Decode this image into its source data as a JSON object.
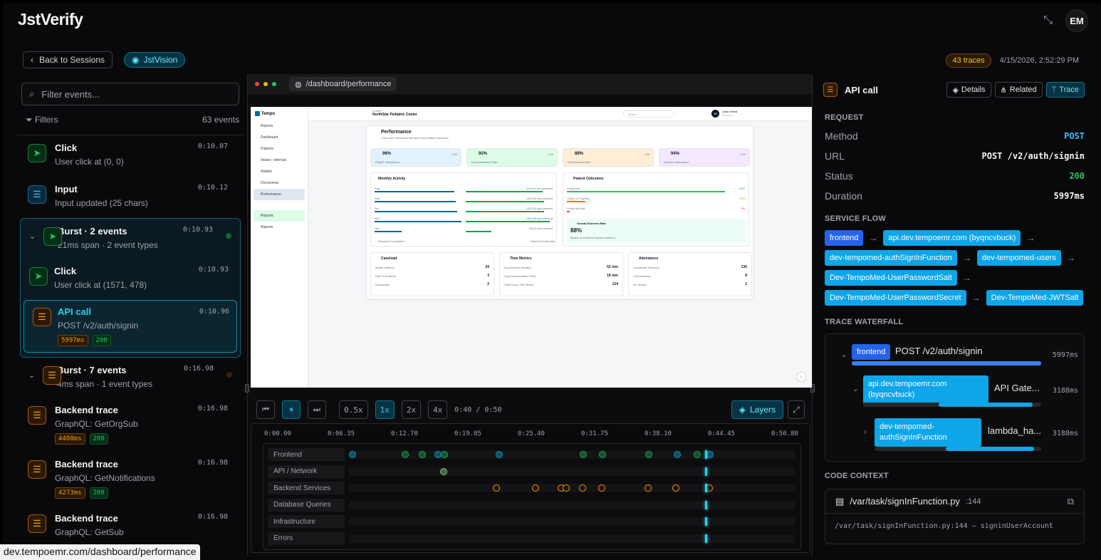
{
  "app": {
    "logo": "JstVerify",
    "avatar": "EM"
  },
  "subbar": {
    "back": "Back to Sessions",
    "vision": "JstVision",
    "traces": "43 traces",
    "datetime": "4/15/2026, 2:52:29 PM"
  },
  "left": {
    "search_placeholder": "Filter events...",
    "filters": "Filters",
    "count": "63 events",
    "events": [
      {
        "title": "Click",
        "sub": "User click at (0, 0)",
        "time": "0:10.07"
      },
      {
        "title": "Input",
        "sub": "Input updated (25 chars)",
        "time": "0:10.12"
      }
    ],
    "burst1": {
      "title": "Burst · 2 events",
      "sub": "21ms span · 2 event types",
      "time": "0:10.93",
      "click": {
        "title": "Click",
        "sub": "User click at (1571, 478)",
        "time": "0:10.93"
      },
      "api": {
        "title": "API call",
        "sub": "POST /v2/auth/signin",
        "time": "0:10.96",
        "dur": "5997ms",
        "status": "200"
      }
    },
    "burst2": {
      "title": "Burst · 7 events",
      "sub": "4ms span · 1 event types",
      "time": "0:16.98"
    },
    "traces": [
      {
        "title": "Backend trace",
        "sub": "GraphQL: GetOrgSub",
        "time": "0:16.98",
        "dur": "4408ms",
        "status": "200"
      },
      {
        "title": "Backend trace",
        "sub": "GraphQL: GetNotifications",
        "time": "0:16.98",
        "dur": "4273ms",
        "status": "200"
      },
      {
        "title": "Backend trace",
        "sub": "GraphQL: GetSub",
        "time": "0:16.98"
      }
    ]
  },
  "browser": {
    "url": "/dashboard/performance"
  },
  "preview": {
    "brand": "Tempo",
    "clinic_label": "CLINIC",
    "clinic": "NorthStar Pediatric Center",
    "search": "Search",
    "user": "Justin Reed",
    "user_role": "Account",
    "user_initials": "JR",
    "nav": [
      "Reports",
      "Dashboard",
      "Patients",
      "Intake / referrals",
      "Waitlist",
      "Documents",
      "Performance",
      "",
      "Reports",
      "Reports"
    ],
    "title": "Performance",
    "subtitle": "Track your clinical performance and patient outcomes",
    "stats": [
      {
        "v": "96%",
        "l": "Patient Satisfaction",
        "d": "+2%"
      },
      {
        "v": "92%",
        "l": "Documentation Rate",
        "d": "+1%"
      },
      {
        "v": "88%",
        "l": "Goal Achievement",
        "d": "-1%"
      },
      {
        "v": "94%",
        "l": "Session Attendance",
        "d": "+2%"
      }
    ],
    "monthly": {
      "title": "Monthly Activity",
      "rows": [
        {
          "m": "Aug",
          "v": "118/124 documented"
        },
        {
          "m": "Sep",
          "v": "128/132 documented"
        },
        {
          "m": "Oct",
          "v": "122/128 documented"
        },
        {
          "m": "Nov",
          "v": "130/135 documented"
        },
        {
          "m": "Dec",
          "v": "40/42 documented"
        }
      ],
      "legend1": "Sessions Completed",
      "legend2": "Notes Documented"
    },
    "outcomes": {
      "title": "Patient Outcomes",
      "rows": [
        {
          "l": "Goals Met",
          "v": "68%"
        },
        {
          "l": "Goals In Progress",
          "v": "10%"
        },
        {
          "l": "Goals Not Met",
          "v": "3%"
        }
      ],
      "rate_label": "Overall Success Rate",
      "rate": "88%",
      "rate_sub": "Based on treatment goals achieved"
    },
    "caseload": {
      "title": "Caseload",
      "rows": [
        {
          "l": "Active Patients",
          "v": "24"
        },
        {
          "l": "New This Month",
          "v": "3"
        },
        {
          "l": "Discharged",
          "v": "2"
        }
      ]
    },
    "time": {
      "title": "Time Metrics",
      "rows": [
        {
          "l": "Avg Session Duration",
          "v": "52 min"
        },
        {
          "l": "Avg Documentation Time",
          "v": "18 min"
        },
        {
          "l": "Total Hours This Month",
          "v": "124"
        }
      ]
    },
    "attendance": {
      "title": "Attendance",
      "rows": [
        {
          "l": "Completed Sessions",
          "v": "136"
        },
        {
          "l": "Cancellations",
          "v": "8"
        },
        {
          "l": "No Shows",
          "v": "2"
        }
      ]
    }
  },
  "player": {
    "speeds": [
      "0.5x",
      "1x",
      "2x",
      "4x"
    ],
    "time": "0:40 / 0:50",
    "layers": "Layers"
  },
  "timeline": {
    "ticks": [
      "0:00.00",
      "0:06.35",
      "0:12.70",
      "0:19.05",
      "0:25.40",
      "0:31.75",
      "0:38.10",
      "0:44.45",
      "0:50.80"
    ],
    "lanes": [
      "Frontend",
      "API / Network",
      "Backend Services",
      "Database Queries",
      "Infrastructure",
      "Errors"
    ]
  },
  "right": {
    "title": "API call",
    "tabs": [
      "Details",
      "Related",
      "Trace"
    ],
    "request_label": "REQUEST",
    "method_k": "Method",
    "method": "POST",
    "url_k": "URL",
    "url": "POST /v2/auth/signin",
    "status_k": "Status",
    "status": "200",
    "duration_k": "Duration",
    "duration": "5997ms",
    "flow_label": "SERVICE FLOW",
    "flow": [
      "frontend",
      "api.dev.tempoemr.com (byqncvbuck)",
      "dev-tempomed-authSignInFunction",
      "dev-tempomed-users",
      "Dev-TempoMed-UserPasswordSalt",
      "Dev-TempoMed-UserPasswordSecret",
      "Dev-TempoMed-JWTSalt"
    ],
    "waterfall_label": "TRACE WATERFALL",
    "waterfall": [
      {
        "svc": "frontend",
        "op": "POST /v2/auth/signin",
        "ms": "5997ms"
      },
      {
        "svc": "api.dev.tempoemr.com (byqncvbuck)",
        "op": "API Gate...",
        "ms": "3188ms"
      },
      {
        "svc": "dev-tempomed-authSignInFunction",
        "op": "lambda_ha...",
        "ms": "3188ms"
      }
    ],
    "code_label": "CODE CONTEXT",
    "file": "/var/task/signInFunction.py",
    "line": ":144",
    "code": "/var/task/signInFunction.py:144 — signinUserAccount"
  },
  "status_url": "dev.tempoemr.com/dashboard/performance",
  "colors": {
    "accent": "#22d3ee",
    "success": "#22c55e",
    "warning": "#f59e0b",
    "service": "#0ea5e9",
    "frontend": "#2563eb"
  }
}
